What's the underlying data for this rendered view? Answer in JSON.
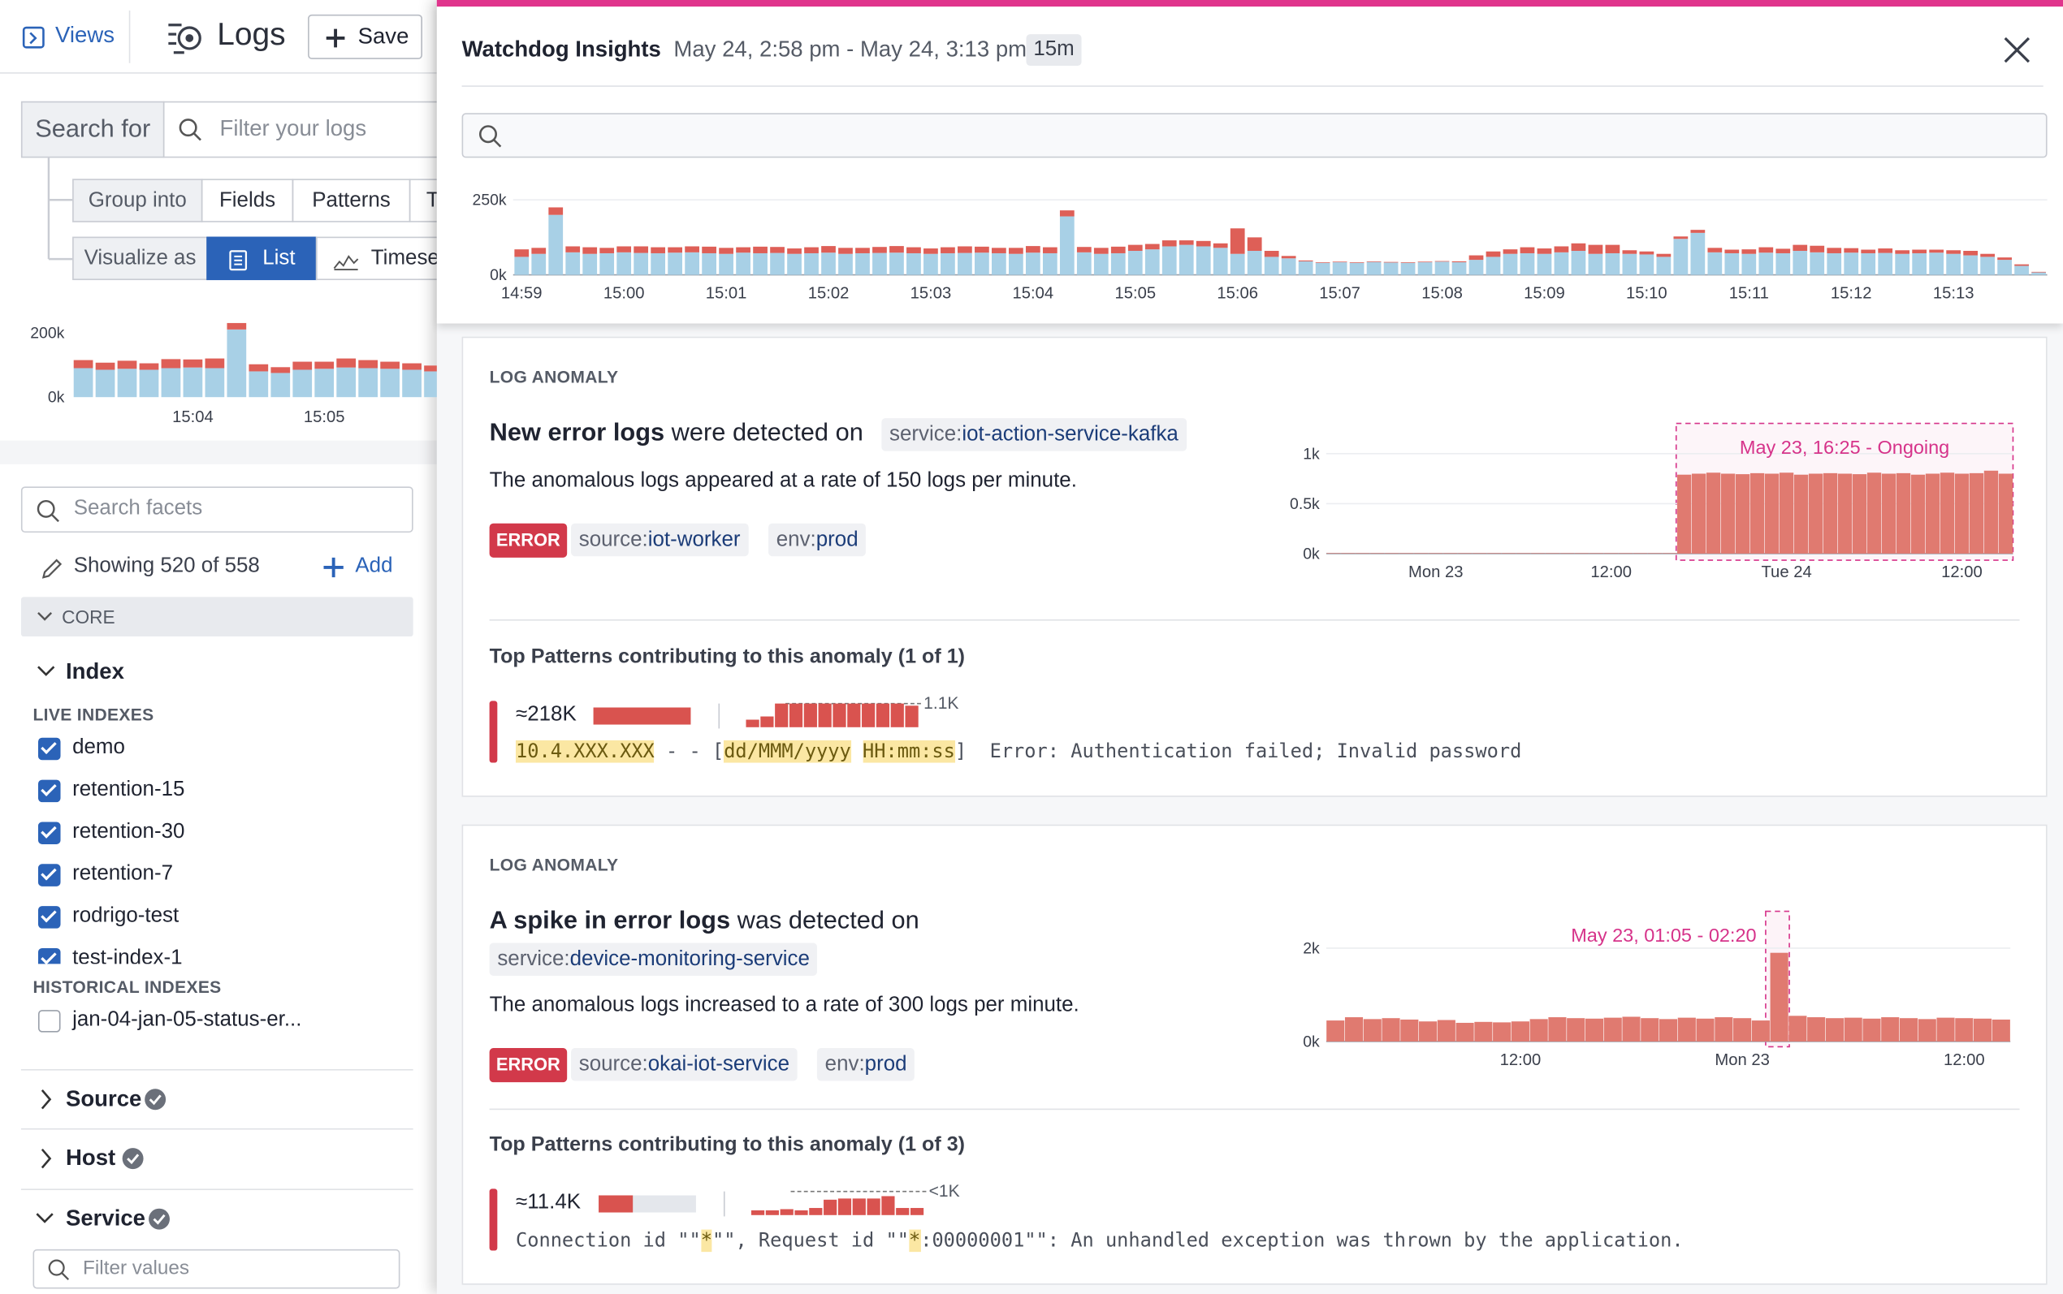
{
  "nav": {
    "views": "Views",
    "logs": "Logs",
    "save": "Save"
  },
  "query": {
    "search_label": "Search for",
    "search_placeholder": "Filter your logs",
    "group_label": "Group into",
    "group_options": [
      "Fields",
      "Patterns",
      "T"
    ],
    "visualize_label": "Visualize as",
    "visualize_options": [
      "List",
      "Timese"
    ]
  },
  "left_chart": {
    "type": "bar",
    "categories": [
      null,
      null,
      null,
      null,
      null,
      "15:04",
      null,
      null,
      null,
      null,
      null,
      "15:05",
      null,
      null,
      null,
      null,
      null
    ],
    "series": [
      {
        "color": "#a8d0e6",
        "values": [
          90000,
          85000,
          88000,
          85000,
          90000,
          92000,
          90000,
          210000,
          80000,
          75000,
          85000,
          88000,
          92000,
          90000,
          88000,
          85000,
          80000
        ]
      },
      {
        "color": "#de5f57",
        "values": [
          25000,
          22000,
          25000,
          20000,
          28000,
          25000,
          30000,
          20000,
          22000,
          18000,
          25000,
          22000,
          28000,
          25000,
          22000,
          20000,
          18000
        ]
      }
    ],
    "ylim": [
      0,
      200000
    ],
    "yticks": [
      {
        "value": 0,
        "label": "0k"
      },
      {
        "value": 200000,
        "label": "200k"
      }
    ],
    "grid": false
  },
  "facets": {
    "search_placeholder": "Search facets",
    "showing": "Showing 520 of 558",
    "add": "Add",
    "core": "CORE",
    "index": {
      "title": "Index",
      "live_label": "LIVE INDEXES",
      "live": [
        "demo",
        "retention-15",
        "retention-30",
        "retention-7",
        "rodrigo-test",
        "test-index-1"
      ],
      "historical_label": "HISTORICAL INDEXES",
      "historical": [
        "jan-04-jan-05-status-er..."
      ]
    },
    "groups": [
      "Source",
      "Host",
      "Service"
    ],
    "filter_placeholder": "Filter values"
  },
  "panel": {
    "title": "Watchdog Insights",
    "range": "May 24, 2:58 pm - May 24, 3:13 pm",
    "duration": "15m",
    "chart": {
      "type": "bar",
      "categories": [
        "14:59",
        null,
        null,
        null,
        null,
        null,
        "15:00",
        null,
        null,
        null,
        null,
        null,
        "15:01",
        null,
        null,
        null,
        null,
        null,
        "15:02",
        null,
        null,
        null,
        null,
        null,
        "15:03",
        null,
        null,
        null,
        null,
        null,
        "15:04",
        null,
        null,
        null,
        null,
        null,
        "15:05",
        null,
        null,
        null,
        null,
        null,
        "15:06",
        null,
        null,
        null,
        null,
        null,
        "15:07",
        null,
        null,
        null,
        null,
        null,
        "15:08",
        null,
        null,
        null,
        null,
        null,
        "15:09",
        null,
        null,
        null,
        null,
        null,
        "15:10",
        null,
        null,
        null,
        null,
        null,
        "15:11",
        null,
        null,
        null,
        null,
        null,
        "15:12",
        null,
        null,
        null,
        null,
        null,
        "15:13",
        null,
        null,
        null,
        null,
        null
      ],
      "series": [
        {
          "color": "#a8d0e6",
          "values": [
            60000,
            70000,
            200000,
            75000,
            70000,
            72000,
            75000,
            73000,
            72000,
            74000,
            75000,
            72000,
            70000,
            74000,
            72000,
            73000,
            70000,
            72000,
            74000,
            70000,
            72000,
            73000,
            74000,
            72000,
            70000,
            72000,
            73000,
            74000,
            72000,
            70000,
            74000,
            72000,
            195000,
            75000,
            70000,
            72000,
            80000,
            85000,
            95000,
            100000,
            95000,
            90000,
            70000,
            80000,
            60000,
            55000,
            45000,
            40000,
            42000,
            40000,
            43000,
            41000,
            40000,
            42000,
            44000,
            42000,
            50000,
            60000,
            70000,
            72000,
            70000,
            75000,
            80000,
            70000,
            72000,
            70000,
            68000,
            60000,
            120000,
            140000,
            75000,
            72000,
            70000,
            74000,
            72000,
            80000,
            75000,
            72000,
            74000,
            72000,
            73000,
            70000,
            72000,
            74000,
            70000,
            65000,
            60000,
            50000,
            30000,
            8000
          ]
        },
        {
          "color": "#de5f57",
          "values": [
            25000,
            20000,
            25000,
            20000,
            22000,
            18000,
            20000,
            22000,
            20000,
            18000,
            20000,
            22000,
            20000,
            18000,
            22000,
            20000,
            18000,
            20000,
            22000,
            20000,
            18000,
            20000,
            22000,
            20000,
            18000,
            20000,
            22000,
            20000,
            18000,
            20000,
            22000,
            20000,
            20000,
            18000,
            20000,
            22000,
            20000,
            18000,
            20000,
            15000,
            18000,
            15000,
            85000,
            45000,
            20000,
            8000,
            3000,
            2000,
            2000,
            2000,
            2000,
            2000,
            2000,
            2000,
            2000,
            3000,
            15000,
            18000,
            15000,
            20000,
            18000,
            20000,
            25000,
            30000,
            28000,
            12000,
            10000,
            10000,
            8000,
            10000,
            15000,
            12000,
            15000,
            18000,
            15000,
            20000,
            22000,
            18000,
            15000,
            12000,
            15000,
            12000,
            12000,
            10000,
            12000,
            15000,
            10000,
            8000,
            5000,
            2000
          ]
        }
      ],
      "ylim": [
        0,
        250000
      ],
      "yticks": [
        {
          "value": 0,
          "label": "0k"
        },
        {
          "value": 250000,
          "label": "250k"
        }
      ],
      "grid": true
    },
    "anomalies": [
      {
        "kind": "LOG ANOMALY",
        "headline_bold": "New error logs",
        "headline_rest": "were detected on",
        "service_key": "service:",
        "service_value": "iot-action-service-kafka",
        "description": "The anomalous logs appeared at a rate of 150 logs per minute.",
        "status": "ERROR",
        "tags": [
          {
            "key": "source:",
            "value": "iot-worker"
          },
          {
            "key": "env:",
            "value": "prod"
          }
        ],
        "chart": {
          "type": "bar",
          "annotation": "May 23, 16:25 - Ongoing",
          "color": "#e07a70",
          "categories": [
            null,
            null,
            null,
            null,
            null,
            null,
            null,
            "Mon 23",
            null,
            null,
            null,
            null,
            null,
            null,
            null,
            null,
            null,
            null,
            null,
            "12:00",
            null,
            null,
            null,
            null,
            null,
            null,
            null,
            null,
            null,
            null,
            null,
            "Tue 24",
            null,
            null,
            null,
            null,
            null,
            null,
            null,
            null,
            null,
            null,
            null,
            "12:00",
            null,
            null,
            null
          ],
          "values": [
            5,
            5,
            5,
            5,
            5,
            5,
            5,
            5,
            5,
            5,
            5,
            5,
            5,
            5,
            5,
            5,
            5,
            5,
            5,
            5,
            5,
            5,
            5,
            5,
            790,
            800,
            810,
            800,
            795,
            805,
            800,
            810,
            790,
            800,
            805,
            800,
            795,
            810,
            800,
            805,
            790,
            800,
            810,
            800,
            805,
            830,
            800
          ],
          "ylim": [
            0,
            1000
          ],
          "yticks": [
            {
              "value": 0,
              "label": "0k"
            },
            {
              "value": 500,
              "label": "0.5k"
            },
            {
              "value": 1000,
              "label": "1k"
            }
          ],
          "grid": true
        },
        "patterns_title": "Top Patterns contributing to this anomaly (1 of 1)",
        "pattern": {
          "count": "≈218K",
          "spark": {
            "values": [
              350,
              500,
              1100,
              1100,
              1100,
              1100,
              1100,
              1100,
              1100,
              1100,
              1100,
              1000
            ],
            "max_tick": {
              "value": 1100,
              "label": "1.1K"
            }
          },
          "segments": [
            {
              "text": "10.4.XXX.XXX",
              "hl": true
            },
            {
              "text": " - - ["
            },
            {
              "text": "dd/MMM/yyyy",
              "hl": true
            },
            {
              "text": " "
            },
            {
              "text": "HH:mm:ss",
              "hl": true
            },
            {
              "text": "]  Error: Authentication failed; Invalid password"
            }
          ]
        }
      },
      {
        "kind": "LOG ANOMALY",
        "headline_bold": "A spike in error logs",
        "headline_rest": "was detected on",
        "service_key": "service:",
        "service_value": "device-monitoring-service",
        "description": "The anomalous logs increased to a rate of 300 logs per minute.",
        "status": "ERROR",
        "tags": [
          {
            "key": "source:",
            "value": "okai-iot-service"
          },
          {
            "key": "env:",
            "value": "prod"
          }
        ],
        "chart": {
          "type": "bar",
          "annotation": "May 23, 01:05 - 02:20",
          "color": "#e07a70",
          "categories": [
            null,
            null,
            null,
            null,
            null,
            null,
            null,
            null,
            null,
            null,
            "12:00",
            null,
            null,
            null,
            null,
            null,
            null,
            null,
            null,
            null,
            null,
            null,
            "Mon 23",
            null,
            null,
            null,
            null,
            null,
            null,
            null,
            null,
            null,
            null,
            null,
            "12:00",
            null,
            null
          ],
          "values": [
            450,
            520,
            480,
            500,
            470,
            430,
            460,
            400,
            420,
            410,
            430,
            480,
            520,
            500,
            490,
            510,
            530,
            500,
            480,
            510,
            490,
            520,
            500,
            450,
            1900,
            550,
            520,
            500,
            510,
            490,
            520,
            500,
            480,
            510,
            500,
            490,
            470
          ],
          "ylim": [
            0,
            2000
          ],
          "yticks": [
            {
              "value": 0,
              "label": "0k"
            },
            {
              "value": 2000,
              "label": "2k"
            }
          ],
          "grid": true
        },
        "patterns_title": "Top Patterns contributing to this anomaly (1 of 3)",
        "pattern": {
          "count": "≈11.4K",
          "spark": {
            "values": [
              200,
              200,
              250,
              200,
              300,
              650,
              700,
              700,
              700,
              800,
              300,
              300
            ],
            "max_tick": {
              "value": 1000,
              "label": "<1K"
            }
          },
          "segments": [
            {
              "text": "Connection id \"\""
            },
            {
              "text": "*",
              "hl": true
            },
            {
              "text": "\"\", Request id \"\""
            },
            {
              "text": "*",
              "hl": true
            },
            {
              "text": ":00000001\"\": An unhandled exception was thrown by the application."
            }
          ]
        }
      }
    ]
  }
}
